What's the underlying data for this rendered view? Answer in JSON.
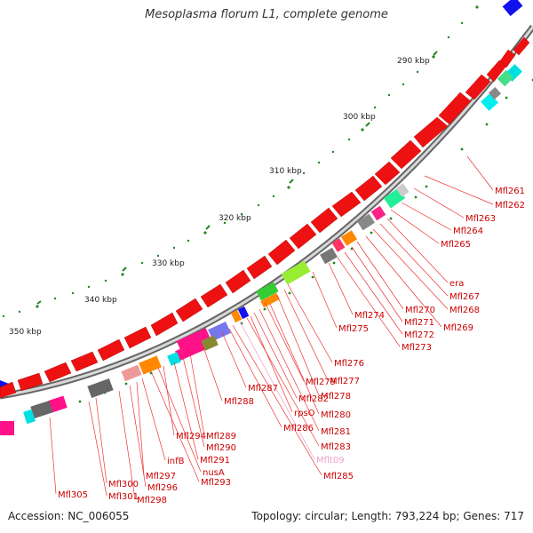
{
  "title": "Mesoplasma florum L1, complete genome",
  "footer": {
    "accession": "Accession: NC_006055",
    "summary": "Topology: circular; Length: 793,224 bp; Genes: 717"
  },
  "ticks": [
    "290 kbp",
    "300 kbp",
    "310 kbp",
    "320 kbp",
    "330 kbp",
    "340 kbp",
    "350 kbp"
  ],
  "labels": [
    {
      "text": "Mfl261",
      "color": "#cc0000"
    },
    {
      "text": "Mfl262",
      "color": "#cc0000"
    },
    {
      "text": "Mfl263",
      "color": "#cc0000"
    },
    {
      "text": "Mfl264",
      "color": "#cc0000"
    },
    {
      "text": "Mfl265",
      "color": "#cc0000"
    },
    {
      "text": "era",
      "color": "#cc0000"
    },
    {
      "text": "Mfl267",
      "color": "#cc0000"
    },
    {
      "text": "Mfl268",
      "color": "#cc0000"
    },
    {
      "text": "Mfl269",
      "color": "#cc0000"
    },
    {
      "text": "Mfl270",
      "color": "#cc0000"
    },
    {
      "text": "Mfl271",
      "color": "#cc0000"
    },
    {
      "text": "Mfl272",
      "color": "#cc0000"
    },
    {
      "text": "Mfl273",
      "color": "#cc0000"
    },
    {
      "text": "Mfl274",
      "color": "#cc0000"
    },
    {
      "text": "Mfl275",
      "color": "#cc0000"
    },
    {
      "text": "Mfl276",
      "color": "#cc0000"
    },
    {
      "text": "Mfl277",
      "color": "#cc0000"
    },
    {
      "text": "Mfl278",
      "color": "#cc0000"
    },
    {
      "text": "Mfl279",
      "color": "#cc0000"
    },
    {
      "text": "Mfl280",
      "color": "#cc0000"
    },
    {
      "text": "Mfl281",
      "color": "#cc0000"
    },
    {
      "text": "Mfl282",
      "color": "#cc0000"
    },
    {
      "text": "rpsO",
      "color": "#cc0000"
    },
    {
      "text": "Mfl283",
      "color": "#cc0000"
    },
    {
      "text": "Mflt09",
      "color": "#f0a0c8"
    },
    {
      "text": "Mfl285",
      "color": "#cc0000"
    },
    {
      "text": "Mfl286",
      "color": "#cc0000"
    },
    {
      "text": "Mfl287",
      "color": "#cc0000"
    },
    {
      "text": "Mfl288",
      "color": "#cc0000"
    },
    {
      "text": "Mfl289",
      "color": "#cc0000"
    },
    {
      "text": "Mfl290",
      "color": "#cc0000"
    },
    {
      "text": "Mfl291",
      "color": "#cc0000"
    },
    {
      "text": "Mfl294",
      "color": "#cc0000"
    },
    {
      "text": "nusA",
      "color": "#cc0000"
    },
    {
      "text": "Mfl293",
      "color": "#cc0000"
    },
    {
      "text": "infB",
      "color": "#cc0000"
    },
    {
      "text": "Mfl296",
      "color": "#cc0000"
    },
    {
      "text": "Mfl297",
      "color": "#cc0000"
    },
    {
      "text": "Mfl298",
      "color": "#cc0000"
    },
    {
      "text": "Mfl300",
      "color": "#cc0000"
    },
    {
      "text": "Mfl301",
      "color": "#cc0000"
    },
    {
      "text": "Mfl305",
      "color": "#cc0000"
    }
  ],
  "colors": {
    "gene": "#ee1111",
    "backbone": "#9a9a9a",
    "tick": "#228822",
    "label_line": "#ee3333"
  }
}
